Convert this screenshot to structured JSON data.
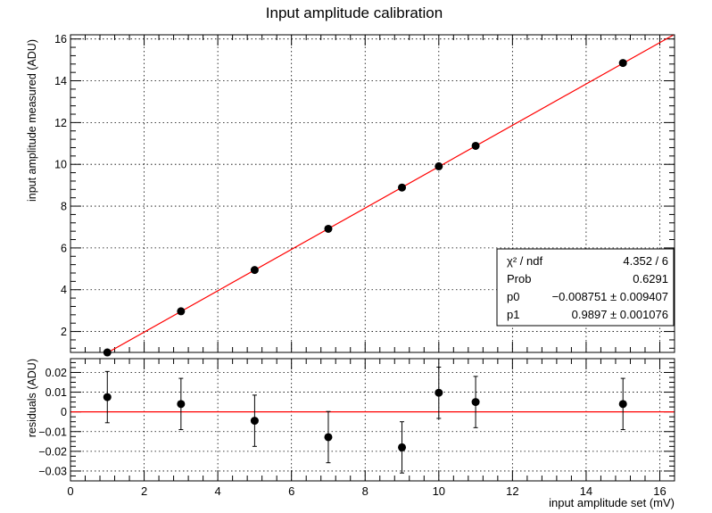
{
  "chart_data": [
    {
      "type": "scatter",
      "title": "Input amplitude calibration",
      "ylabel": "input amplitude measured (ADU)",
      "xlim": [
        0,
        16.4
      ],
      "ylim": [
        1.0,
        16.2
      ],
      "xticks": [
        0,
        2,
        4,
        6,
        8,
        10,
        12,
        14,
        16
      ],
      "yticks": [
        2,
        4,
        6,
        8,
        10,
        12,
        14,
        16
      ],
      "grid": true,
      "series": [
        {
          "x": [
            1,
            3,
            5,
            7,
            9,
            10,
            11,
            15
          ],
          "y": [
            0.998,
            2.967,
            4.944,
            6.916,
            8.889,
            9.907,
            10.885,
            14.85
          ]
        }
      ],
      "fit": {
        "type": "linear",
        "p0": -0.008751,
        "p1": 0.9897,
        "color": "#ff0000"
      },
      "stats_box": {
        "rows": [
          {
            "label": "χ² / ndf",
            "value": "4.352 / 6"
          },
          {
            "label": "Prob",
            "value": "0.6291"
          },
          {
            "label": "p0",
            "value": "−0.008751 ± 0.009407"
          },
          {
            "label": "p1",
            "value": "0.9897 ± 0.001076"
          }
        ],
        "placement": "bottom-right"
      }
    },
    {
      "type": "scatter",
      "title": "",
      "xlabel": "input amplitude set (mV)",
      "ylabel": "residuals (ADU)",
      "xlim": [
        0,
        16.4
      ],
      "ylim": [
        -0.035,
        0.027
      ],
      "xticks": [
        0,
        2,
        4,
        6,
        8,
        10,
        12,
        14,
        16
      ],
      "yticks": [
        -0.03,
        -0.02,
        -0.01,
        0,
        0.01,
        0.02
      ],
      "ytick_labels": [
        "−0.03",
        "−0.02",
        "−0.01",
        "0",
        "0.01",
        "0.02"
      ],
      "grid": true,
      "series": [
        {
          "x": [
            1,
            3,
            5,
            7,
            9,
            10,
            11,
            15
          ],
          "y": [
            0.0075,
            0.004,
            -0.0045,
            -0.0128,
            -0.018,
            0.0097,
            0.005,
            0.004
          ],
          "yerr": [
            0.013,
            0.013,
            0.013,
            0.013,
            0.013,
            0.013,
            0.013,
            0.013
          ]
        }
      ],
      "zero_line": {
        "y": 0,
        "color": "#ff0000"
      }
    }
  ]
}
